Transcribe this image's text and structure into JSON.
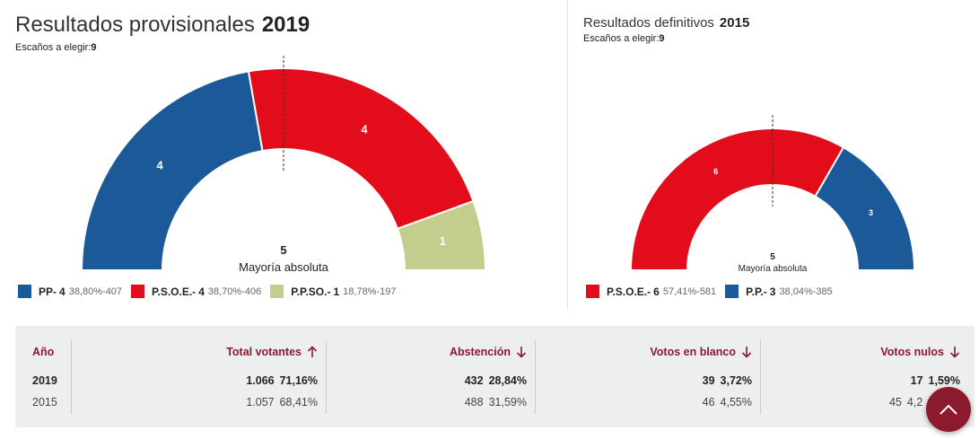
{
  "chart_data": [
    {
      "type": "semicircle",
      "title": "Resultados provisionales",
      "year": "2019",
      "seats_label": "Escaños a elegir:",
      "seats_total": "9",
      "majority_value": "5",
      "majority_label": "Mayoría absoluta",
      "series": [
        {
          "name": "PP",
          "seats": 4,
          "percent": "38,80%",
          "votes": "407",
          "color": "#1c5999"
        },
        {
          "name": "P.S.O.E.",
          "seats": 4,
          "percent": "38,70%",
          "votes": "406",
          "color": "#e30c1b"
        },
        {
          "name": "P.P.SO.",
          "seats": 1,
          "percent": "18,78%",
          "votes": "197",
          "color": "#c4cc8e"
        }
      ]
    },
    {
      "type": "semicircle",
      "title": "Resultados definitivos",
      "year": "2015",
      "seats_label": "Escaños a elegir:",
      "seats_total": "9",
      "majority_value": "5",
      "majority_label": "Mayoría absoluta",
      "series": [
        {
          "name": "P.S.O.E.",
          "seats": 6,
          "percent": "57,41%",
          "votes": "581",
          "color": "#e30c1b"
        },
        {
          "name": "P.P.",
          "seats": 3,
          "percent": "38,04%",
          "votes": "385",
          "color": "#1c5999"
        }
      ]
    }
  ],
  "stats": {
    "headers": {
      "year": "Año",
      "total": "Total votantes",
      "abstention": "Abstención",
      "blank": "Votos en blanco",
      "null": "Votos nulos"
    },
    "rows": [
      {
        "year": "2019",
        "total": "1.066",
        "total_pct": "71,16%",
        "abstention": "432",
        "abstention_pct": "28,84%",
        "blank": "39",
        "blank_pct": "3,72%",
        "null": "17",
        "null_pct": "1,59%"
      },
      {
        "year": "2015",
        "total": "1.057",
        "total_pct": "68,41%",
        "abstention": "488",
        "abstention_pct": "31,59%",
        "blank": "46",
        "blank_pct": "4,55%",
        "null": "45",
        "null_pct": "4,2"
      }
    ],
    "arrows": {
      "total": "up",
      "abstention": "down",
      "blank": "down",
      "null": "down"
    },
    "arrow_color": "#8c1a2e"
  },
  "scroll_top_icon": "chevron-up-icon"
}
